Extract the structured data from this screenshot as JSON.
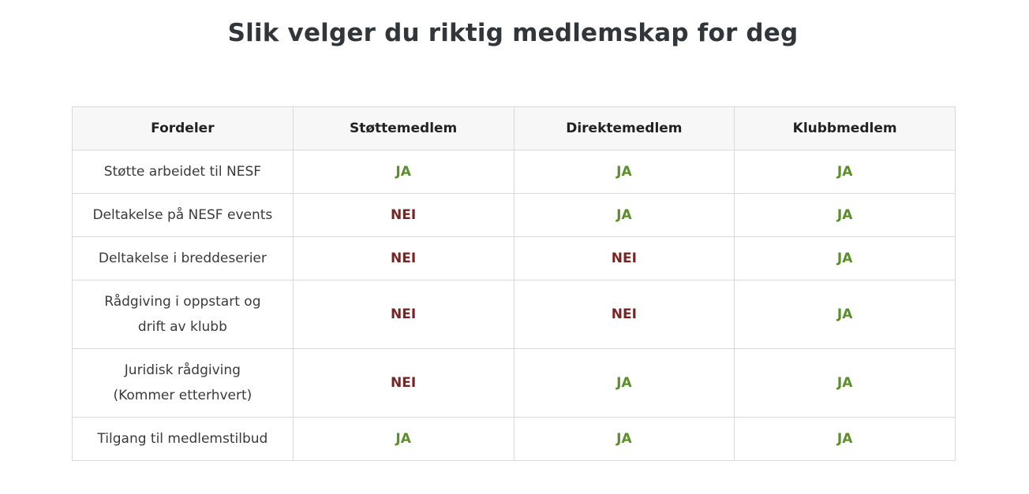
{
  "title": "Slik velger du riktig medlemskap for deg",
  "colors": {
    "yes": "#5a8f29",
    "no": "#7a2323"
  },
  "table": {
    "headers": [
      "Fordeler",
      "Støttemedlem",
      "Direktemedlem",
      "Klubbmedlem"
    ],
    "rows": [
      {
        "benefit": "Støtte arbeidet til NESF",
        "values": [
          "JA",
          "JA",
          "JA"
        ]
      },
      {
        "benefit": "Deltakelse på NESF events",
        "values": [
          "NEI",
          "JA",
          "JA"
        ]
      },
      {
        "benefit": "Deltakelse i breddeserier",
        "values": [
          "NEI",
          "NEI",
          "JA"
        ]
      },
      {
        "benefit_lines": [
          "Rådgiving i oppstart og",
          "drift av klubb"
        ],
        "values": [
          "NEI",
          "NEI",
          "JA"
        ]
      },
      {
        "benefit_lines": [
          "Juridisk rådgiving",
          "(Kommer etterhvert)"
        ],
        "values": [
          "NEI",
          "JA",
          "JA"
        ]
      },
      {
        "benefit": "Tilgang til medlemstilbud",
        "values": [
          "JA",
          "JA",
          "JA"
        ]
      }
    ]
  }
}
